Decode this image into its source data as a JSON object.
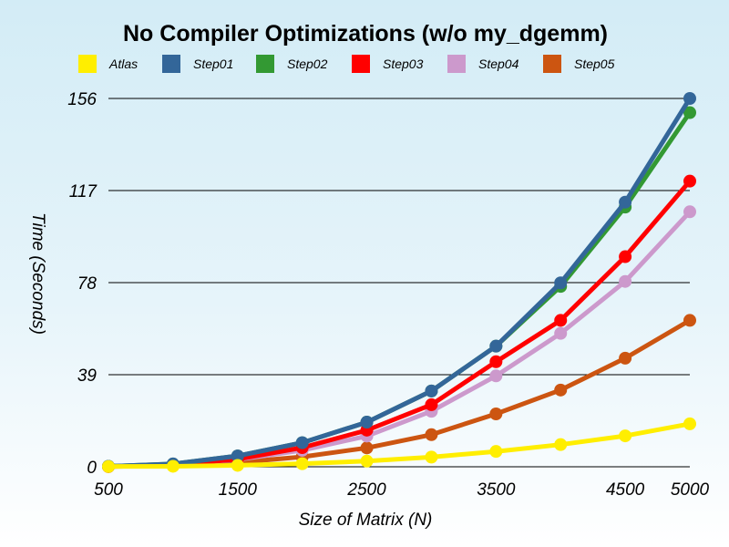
{
  "chart_data": {
    "type": "line",
    "title": "No Compiler Optimizations (w/o my_dgemm)",
    "xlabel": "Size of Matrix (N)",
    "ylabel": "Time (Seconds)",
    "x": [
      500,
      1000,
      1500,
      2000,
      2500,
      3000,
      3500,
      4000,
      4500,
      5000
    ],
    "x_ticks": [
      500,
      1500,
      2500,
      3500,
      4500,
      5000
    ],
    "y_ticks": [
      0,
      39,
      78,
      117,
      156
    ],
    "xlim": [
      500,
      5000
    ],
    "ylim": [
      0,
      156
    ],
    "grid": true,
    "legend_position": "top",
    "series": [
      {
        "name": "Atlas",
        "color": "#ffee00",
        "values": [
          0.1,
          0.2,
          0.6,
          1.3,
          2.4,
          4.1,
          6.5,
          9.4,
          13.1,
          18.2
        ]
      },
      {
        "name": "Step01",
        "color": "#336699",
        "values": [
          0.2,
          1.2,
          4.6,
          10.2,
          18.9,
          32.1,
          51.1,
          77.9,
          112.1,
          156.0
        ]
      },
      {
        "name": "Step02",
        "color": "#339933",
        "values": [
          0.2,
          1.2,
          4.6,
          10.2,
          18.9,
          32.1,
          51.1,
          76.4,
          110.0,
          150.0
        ]
      },
      {
        "name": "Step03",
        "color": "#ff0000",
        "values": [
          0.1,
          0.8,
          3.2,
          8.1,
          15.5,
          26.3,
          44.5,
          62.0,
          89.0,
          121.0
        ]
      },
      {
        "name": "Step04",
        "color": "#cc99cc",
        "values": [
          0.1,
          0.8,
          3.0,
          7.0,
          13.0,
          23.5,
          38.5,
          56.5,
          78.5,
          108.0
        ]
      },
      {
        "name": "Step05",
        "color": "#cc5511",
        "values": [
          0.1,
          0.5,
          1.8,
          4.2,
          8.0,
          13.6,
          22.4,
          32.5,
          46.0,
          62.0
        ]
      }
    ]
  }
}
